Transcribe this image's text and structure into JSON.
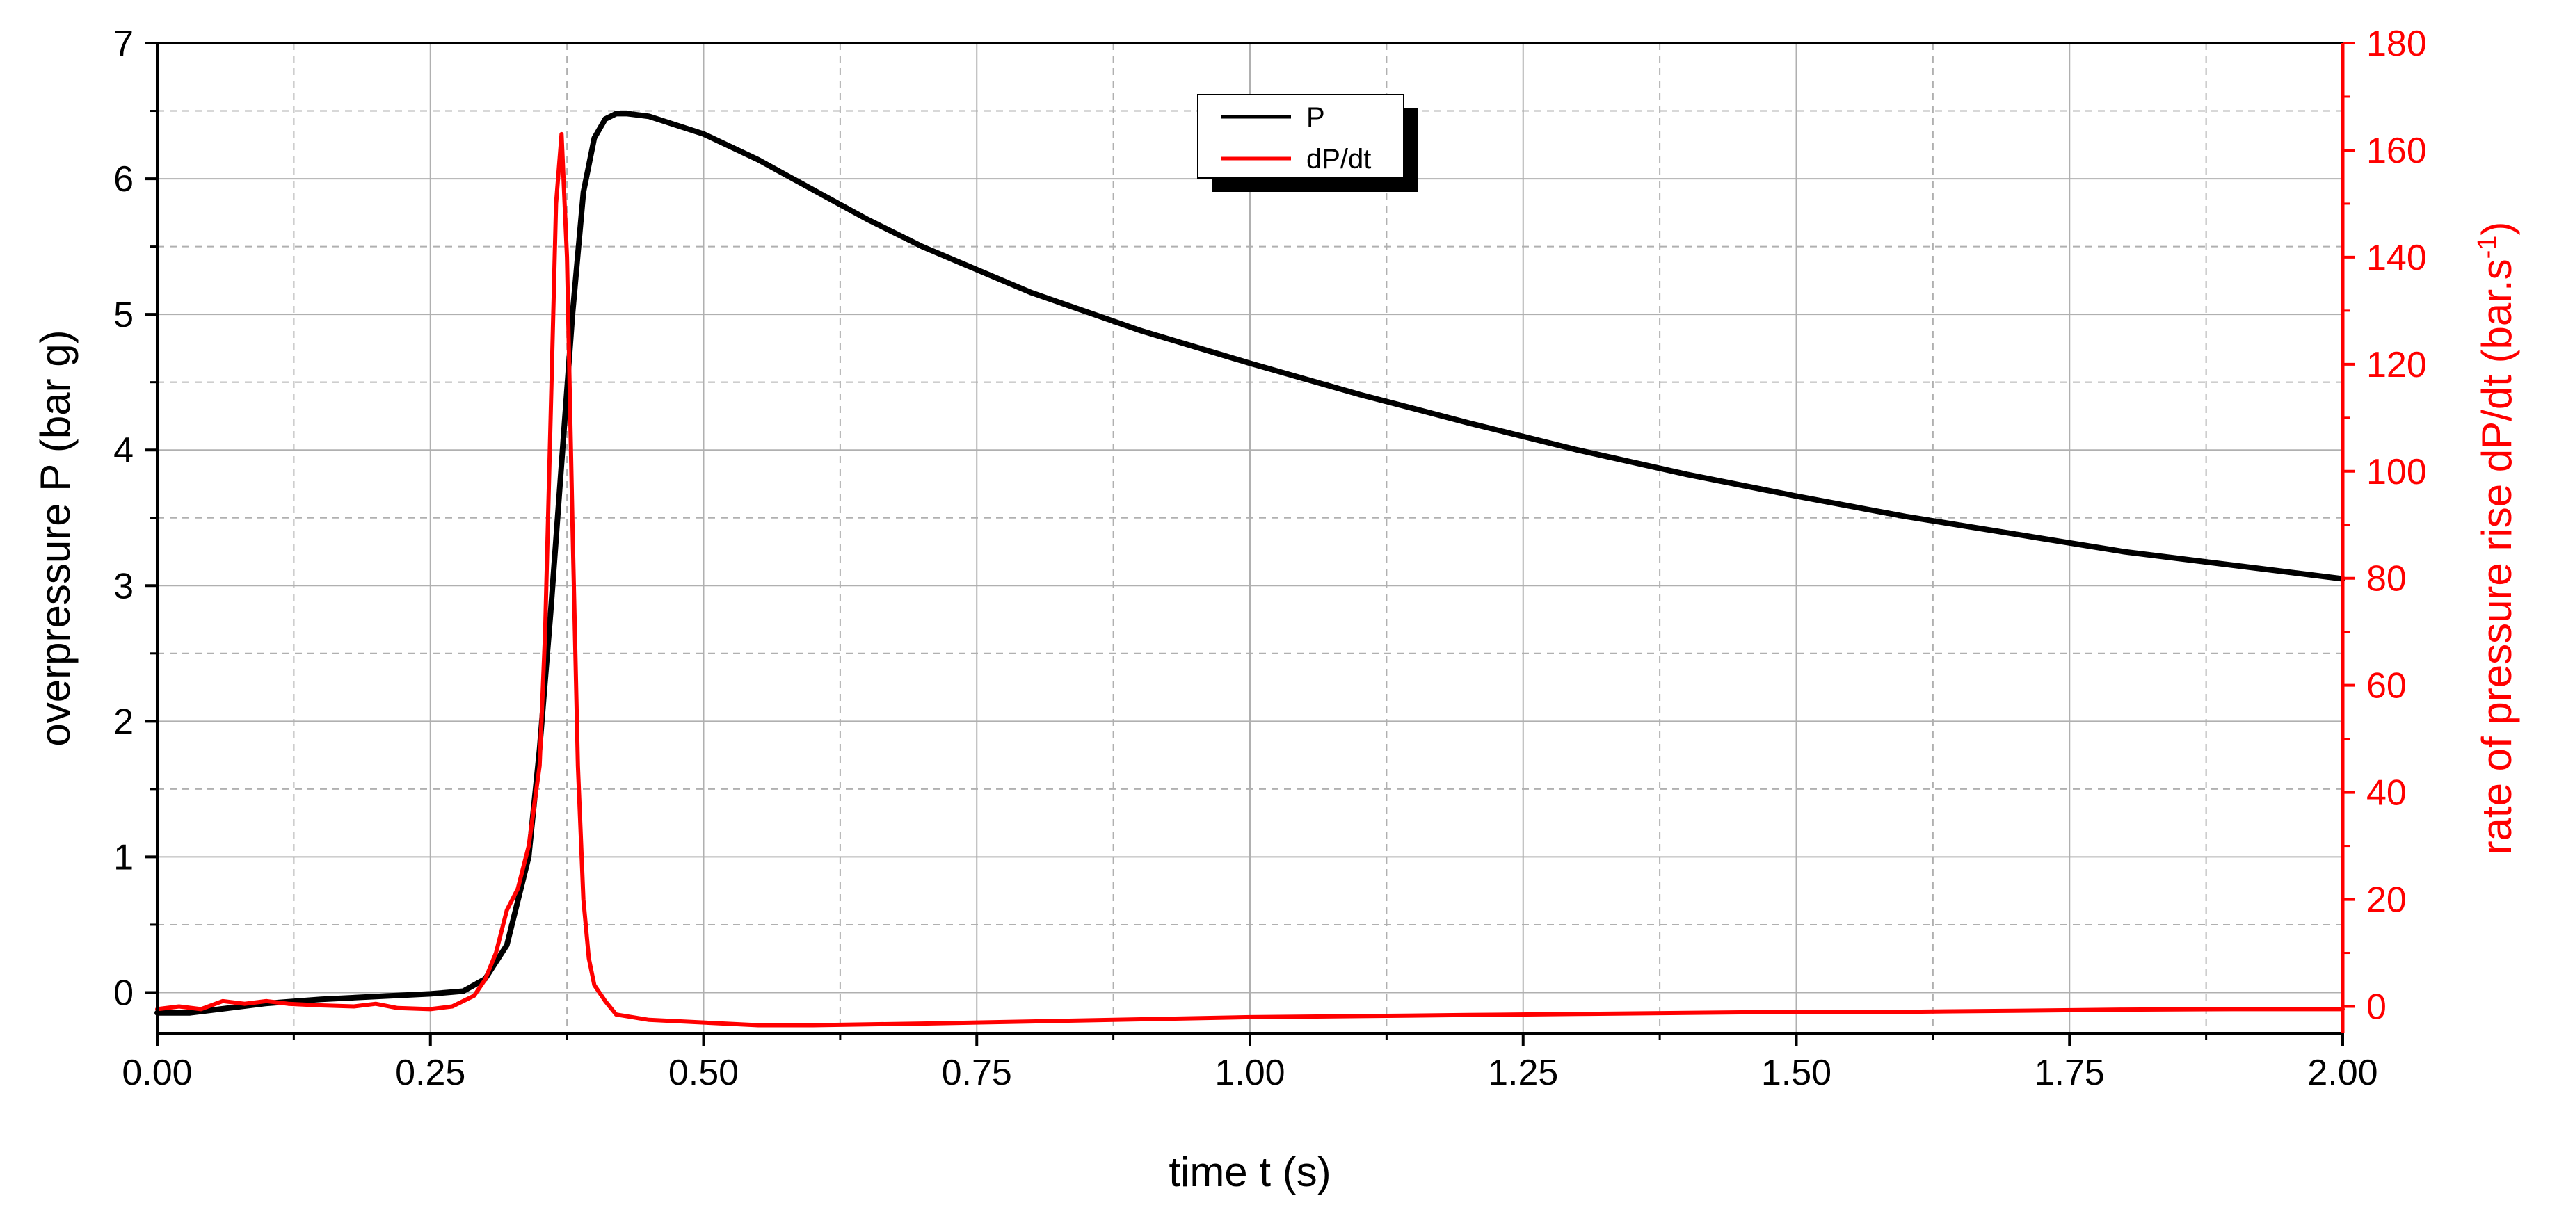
{
  "chart_data": {
    "type": "line",
    "xlabel": "time t (s)",
    "ylabel": "overpressure P (bar g)",
    "y2label": "rate of pressure rise dP/dt (bar.s",
    "y2label_sup": "-1",
    "y2label_end": ")",
    "xlim": [
      0,
      2
    ],
    "ylim": [
      -0.3,
      7
    ],
    "y2lim": [
      -5,
      180
    ],
    "x_ticks": [
      "0.00",
      "0.25",
      "0.50",
      "0.75",
      "1.00",
      "1.25",
      "1.50",
      "1.75",
      "2.00"
    ],
    "y_ticks": [
      "0",
      "1",
      "2",
      "3",
      "4",
      "5",
      "6",
      "7"
    ],
    "y2_ticks": [
      "0",
      "20",
      "40",
      "60",
      "80",
      "100",
      "120",
      "140",
      "160",
      "180"
    ],
    "grid": true,
    "legend_position": "top-center",
    "colors": {
      "P": "#000000",
      "dPdt": "#ff0000",
      "grid": "#b0b0b0"
    },
    "series": [
      {
        "name": "P",
        "axis": "left",
        "x": [
          0.0,
          0.03,
          0.06,
          0.1,
          0.15,
          0.2,
          0.25,
          0.28,
          0.3,
          0.32,
          0.34,
          0.35,
          0.36,
          0.37,
          0.38,
          0.39,
          0.4,
          0.41,
          0.42,
          0.43,
          0.45,
          0.5,
          0.55,
          0.6,
          0.65,
          0.7,
          0.75,
          0.8,
          0.9,
          1.0,
          1.1,
          1.2,
          1.3,
          1.4,
          1.5,
          1.6,
          1.7,
          1.8,
          1.9,
          2.0
        ],
        "values": [
          -0.15,
          -0.15,
          -0.12,
          -0.08,
          -0.05,
          -0.03,
          -0.01,
          0.01,
          0.1,
          0.35,
          1.0,
          1.8,
          2.8,
          3.9,
          5.0,
          5.9,
          6.3,
          6.44,
          6.48,
          6.48,
          6.46,
          6.33,
          6.14,
          5.92,
          5.7,
          5.5,
          5.33,
          5.16,
          4.88,
          4.64,
          4.41,
          4.2,
          4.0,
          3.82,
          3.66,
          3.51,
          3.38,
          3.25,
          3.15,
          3.05
        ]
      },
      {
        "name": "dP/dt",
        "axis": "right",
        "x": [
          0.0,
          0.02,
          0.04,
          0.06,
          0.08,
          0.1,
          0.12,
          0.15,
          0.18,
          0.2,
          0.22,
          0.25,
          0.27,
          0.29,
          0.3,
          0.31,
          0.32,
          0.33,
          0.34,
          0.35,
          0.355,
          0.36,
          0.365,
          0.37,
          0.375,
          0.38,
          0.385,
          0.39,
          0.395,
          0.4,
          0.41,
          0.42,
          0.45,
          0.5,
          0.55,
          0.6,
          0.7,
          0.8,
          0.9,
          1.0,
          1.1,
          1.2,
          1.3,
          1.4,
          1.5,
          1.6,
          1.7,
          1.8,
          1.9,
          2.0
        ],
        "values": [
          -0.5,
          0,
          -0.5,
          1,
          0.5,
          1,
          0.5,
          0.2,
          0,
          0.5,
          -0.3,
          -0.5,
          0,
          2,
          5,
          10,
          18,
          22,
          30,
          45,
          70,
          110,
          150,
          163,
          140,
          90,
          45,
          20,
          9,
          4,
          1,
          -1.5,
          -2.5,
          -3,
          -3.5,
          -3.5,
          -3.2,
          -2.8,
          -2.4,
          -2,
          -1.8,
          -1.6,
          -1.4,
          -1.2,
          -1,
          -1,
          -0.8,
          -0.6,
          -0.5,
          -0.5
        ]
      }
    ]
  }
}
